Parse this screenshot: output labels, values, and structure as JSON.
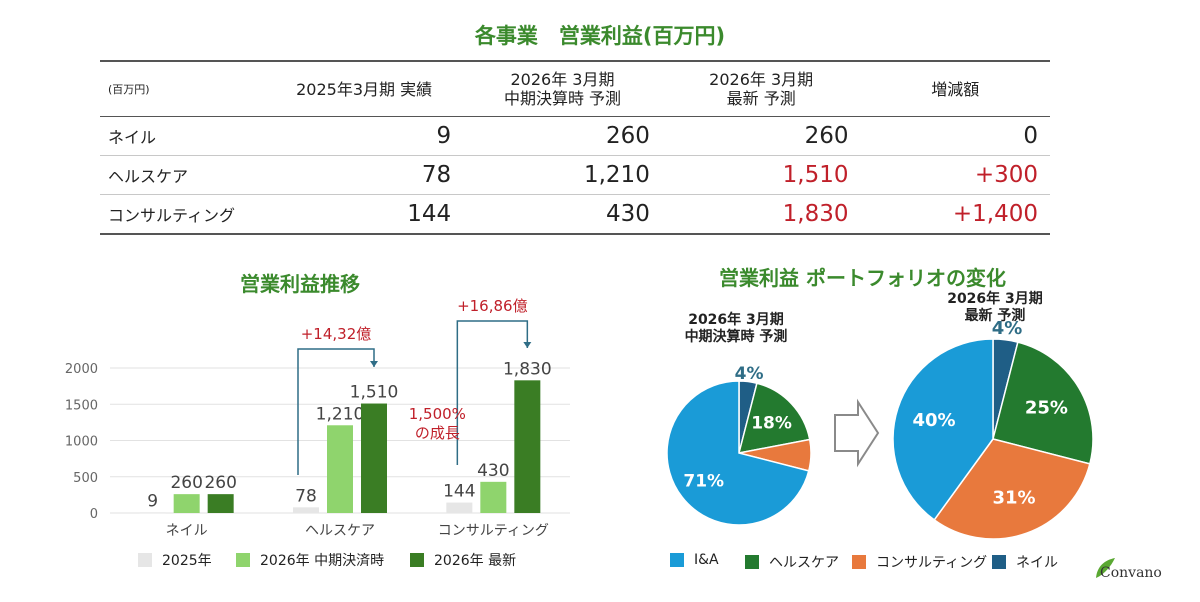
{
  "table": {
    "title": "各事業　営業利益(百万円)",
    "unit": "(百万円)",
    "headers": [
      "2025年3月期 実績",
      "2026年 3月期\n中期決算時 予測",
      "2026年 3月期\n最新 予測",
      "増減額"
    ],
    "rows": [
      {
        "label": "ネイル",
        "v2025": "9",
        "mid": "260",
        "latest": "260",
        "diff": "0",
        "highlight": false
      },
      {
        "label": "ヘルスケア",
        "v2025": "78",
        "mid": "1,210",
        "latest": "1,510",
        "diff": "+300",
        "highlight": true
      },
      {
        "label": "コンサルティング",
        "v2025": "144",
        "mid": "430",
        "latest": "1,830",
        "diff": "+1,400",
        "highlight": true
      }
    ]
  },
  "bar_section": {
    "title": "営業利益推移",
    "annotation_healthcare": "+14,32億",
    "annotation_consulting": "+16,86億",
    "growth_note": "1,500%\nの成長"
  },
  "pie_section": {
    "title": "営業利益 ポートフォリオの変化",
    "left_title": "2026年 3月期\n中期決算時 予測",
    "right_title": "2026年 3月期\n最新 予測"
  },
  "chart_data": [
    {
      "type": "bar",
      "categories": [
        "ネイル",
        "ヘルスケア",
        "コンサルティング"
      ],
      "series": [
        {
          "name": "2025年",
          "values": [
            9,
            78,
            144
          ],
          "color": "#e6e6e6"
        },
        {
          "name": "2026年 中期決済時",
          "values": [
            260,
            1210,
            430
          ],
          "color": "#8fd46d"
        },
        {
          "name": "2026年 最新",
          "values": [
            260,
            1510,
            1830
          ],
          "color": "#3a7d24"
        }
      ],
      "data_labels": [
        [
          "9",
          "78",
          "144"
        ],
        [
          "260",
          "1,210",
          "430"
        ],
        [
          "260",
          "1,510",
          "1,830"
        ]
      ],
      "yticks": [
        0,
        500,
        1000,
        1500,
        2000
      ],
      "ylim": [
        0,
        2000
      ],
      "grid": true,
      "legend": "bottom"
    },
    {
      "type": "pie",
      "title": "2026年 3月期\n中期決算時 予測",
      "labels": [
        "I&A",
        "ヘルスケア",
        "コンサルティング",
        "ネイル"
      ],
      "values": [
        71,
        18,
        7,
        4
      ],
      "value_labels": [
        "71%",
        "18%",
        "",
        "4%"
      ],
      "colors": [
        "#1a9bd7",
        "#237a2f",
        "#e8793d",
        "#1f5e86"
      ]
    },
    {
      "type": "pie",
      "title": "2026年 3月期\n最新 予測",
      "labels": [
        "I&A",
        "ヘルスケア",
        "コンサルティング",
        "ネイル"
      ],
      "values": [
        40,
        25,
        31,
        4
      ],
      "value_labels": [
        "40%",
        "25%",
        "31%",
        "4%"
      ],
      "colors": [
        "#1a9bd7",
        "#237a2f",
        "#e8793d",
        "#1f5e86"
      ]
    }
  ],
  "pie_legend": [
    {
      "label": "I&A",
      "color": "#1a9bd7"
    },
    {
      "label": "ヘルスケア",
      "color": "#237a2f"
    },
    {
      "label": "コンサルティング",
      "color": "#e8793d"
    },
    {
      "label": "ネイル",
      "color": "#1f5e86"
    }
  ],
  "logo": "Convano"
}
